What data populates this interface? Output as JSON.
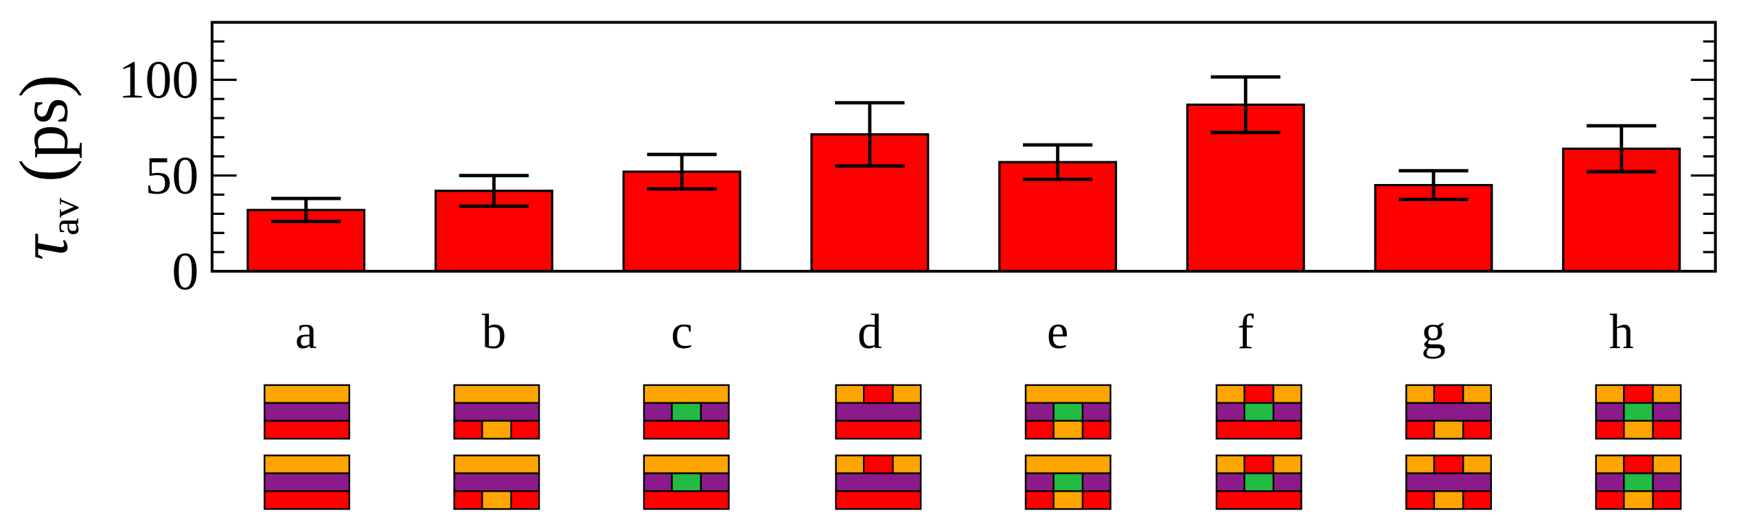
{
  "chart_data": {
    "type": "bar",
    "y_label": {
      "symbol": "τ",
      "subscript": "av",
      "unit": "(ps)"
    },
    "categories": [
      "a",
      "b",
      "c",
      "d",
      "e",
      "f",
      "g",
      "h"
    ],
    "values": [
      32,
      42,
      52,
      71.5,
      57,
      87,
      45,
      64
    ],
    "errors": [
      6,
      8,
      9,
      16.5,
      9,
      14.5,
      7.5,
      12
    ],
    "color": "#ff0000",
    "ylim": [
      0,
      130
    ],
    "yticks": [
      0,
      50,
      100
    ],
    "minor_yticks": [
      10,
      20,
      30,
      40,
      60,
      70,
      80,
      90,
      110,
      120
    ]
  }
}
